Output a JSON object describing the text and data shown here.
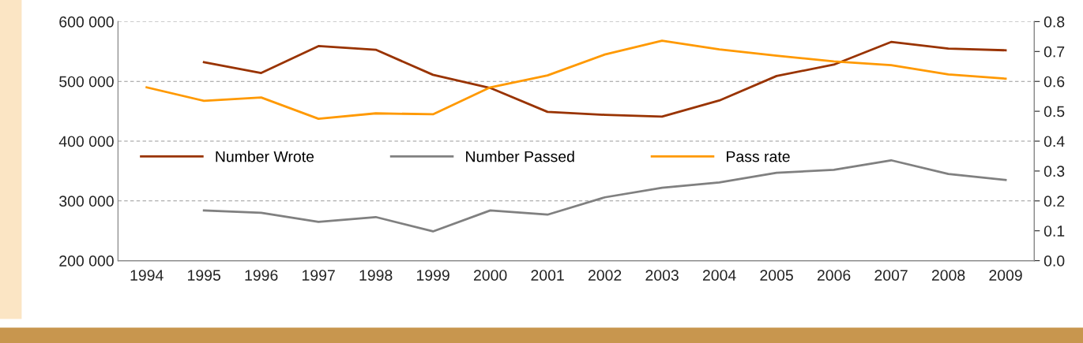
{
  "chart_data": {
    "type": "line",
    "categories": [
      "1994",
      "1995",
      "1996",
      "1997",
      "1998",
      "1999",
      "2000",
      "2001",
      "2002",
      "2003",
      "2004",
      "2005",
      "2006",
      "2007",
      "2008",
      "2009"
    ],
    "series": [
      {
        "name": "Number Wrote",
        "color": "#993300",
        "values": [
          null,
          532000,
          514000,
          559000,
          553000,
          511000,
          489000,
          449000,
          444000,
          441000,
          468000,
          509000,
          528000,
          566000,
          555000,
          552000
        ]
      },
      {
        "name": "Number Passed",
        "color": "#808080",
        "values": [
          null,
          284000,
          280000,
          265000,
          273000,
          249000,
          284000,
          277000,
          306000,
          322000,
          331000,
          347000,
          352000,
          368000,
          345000,
          335000
        ]
      },
      {
        "name": "Pass rate",
        "color": "#ff9900",
        "axis": "y2",
        "values": [
          0.58,
          0.535,
          0.546,
          0.475,
          0.493,
          0.49,
          0.58,
          0.62,
          0.69,
          0.736,
          0.707,
          0.686,
          0.667,
          0.654,
          0.623,
          0.609
        ]
      }
    ],
    "ylim": [
      200000,
      600000
    ],
    "yticks": [
      {
        "value": 200000,
        "label": "200 000"
      },
      {
        "value": 300000,
        "label": "300 000"
      },
      {
        "value": 400000,
        "label": "400 000"
      },
      {
        "value": 500000,
        "label": "500 000"
      },
      {
        "value": 600000,
        "label": "600 000"
      }
    ],
    "y2lim": [
      0,
      0.8
    ],
    "y2ticks": [
      {
        "value": 0,
        "label": "0.0"
      },
      {
        "value": 0.1,
        "label": "0.1"
      },
      {
        "value": 0.2,
        "label": "0.2"
      },
      {
        "value": 0.3,
        "label": "0.3"
      },
      {
        "value": 0.4,
        "label": "0.4"
      },
      {
        "value": 0.5,
        "label": "0.5"
      },
      {
        "value": 0.6,
        "label": "0.6"
      },
      {
        "value": 0.7,
        "label": "0.7"
      },
      {
        "value": 0.8,
        "label": "0.8"
      }
    ],
    "grid": "y",
    "legend": "left",
    "marker": "none",
    "line_style": "solid"
  }
}
